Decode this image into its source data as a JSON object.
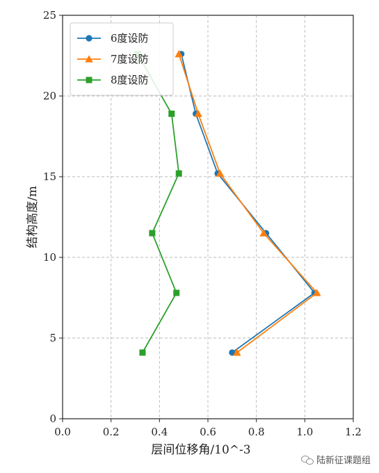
{
  "chart_data": {
    "type": "line",
    "title": "",
    "xlabel": "层间位移角/10^-3",
    "ylabel": "结构高度/m",
    "xlim": [
      0,
      1.2
    ],
    "ylim": [
      0,
      25
    ],
    "x_ticks": [
      0.0,
      0.2,
      0.4,
      0.6,
      0.8,
      1.0,
      1.2
    ],
    "x_tick_labels": [
      "0.0",
      "0.2",
      "0.4",
      "0.6",
      "0.8",
      "1.0",
      "1.2"
    ],
    "y_ticks": [
      0,
      5,
      10,
      15,
      20,
      25
    ],
    "y_tick_labels": [
      "0",
      "5",
      "10",
      "15",
      "20",
      "25"
    ],
    "grid": true,
    "legend_position": "top-left",
    "series": [
      {
        "name": "6度设防",
        "color": "#1f77b4",
        "marker": "circle",
        "x": [
          0.7,
          1.04,
          0.84,
          0.64,
          0.55,
          0.49
        ],
        "y": [
          4.1,
          7.8,
          11.5,
          15.2,
          18.9,
          22.6
        ]
      },
      {
        "name": "7度设防",
        "color": "#ff7f0e",
        "marker": "triangle",
        "x": [
          0.72,
          1.05,
          0.83,
          0.65,
          0.56,
          0.48
        ],
        "y": [
          4.1,
          7.8,
          11.5,
          15.2,
          18.9,
          22.6
        ]
      },
      {
        "name": "8度设防",
        "color": "#2ca02c",
        "marker": "square",
        "x": [
          0.33,
          0.47,
          0.37,
          0.48,
          0.45,
          0.31
        ],
        "y": [
          4.1,
          7.8,
          11.5,
          15.2,
          18.9,
          22.6
        ]
      }
    ]
  },
  "watermark": {
    "text": "陆新征课题组",
    "icon": "wechat-icon"
  }
}
